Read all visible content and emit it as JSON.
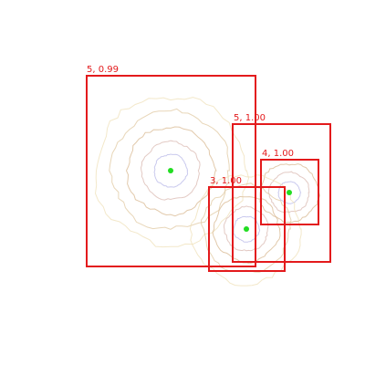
{
  "colors": {
    "box": "#e31a1c",
    "center": "#22dd22",
    "rings": [
      "#b8b8e8",
      "#d9b8b0",
      "#d8b890",
      "#e0c8a0",
      "#efe0b8",
      "#c8c0d8"
    ]
  },
  "detections": [
    {
      "label": "5, 0.99",
      "class_id": 5,
      "score": 0.99
    },
    {
      "label": "5, 1.00",
      "class_id": 5,
      "score": 1.0
    },
    {
      "label": "4, 1.00",
      "class_id": 4,
      "score": 1.0
    },
    {
      "label": "3, 1.00",
      "class_id": 3,
      "score": 1.0
    }
  ]
}
